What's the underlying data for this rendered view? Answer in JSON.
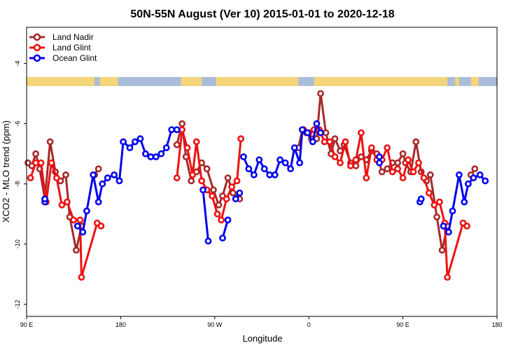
{
  "chart_data": {
    "type": "line",
    "title": "50N-55N August (Ver 10)   2015-01-01 to 2020-12-18",
    "xlabel": "Longitude",
    "ylabel": "XCO2 - MLO trend (ppm)",
    "xlim": [
      0,
      360
    ],
    "ylim": [
      -12.4,
      -2.8
    ],
    "x_ticks": [
      {
        "value": 0,
        "label": "90 E"
      },
      {
        "value": 72,
        "label": "180"
      },
      {
        "value": 144,
        "label": "90 W"
      },
      {
        "value": 216,
        "label": "0"
      },
      {
        "value": 288,
        "label": "90 E"
      },
      {
        "value": 360,
        "label": "180"
      }
    ],
    "y_ticks": [
      {
        "value": -4,
        "label": "-4"
      },
      {
        "value": -6,
        "label": "-6"
      },
      {
        "value": -8,
        "label": "-8"
      },
      {
        "value": -10,
        "label": "-10"
      },
      {
        "value": -12,
        "label": "-12"
      }
    ],
    "legend_position": "top-left",
    "land_strip": {
      "y_range": [
        -4.75,
        -4.45
      ],
      "ocean_color": "#a9bcd9",
      "land_color": "#f5d57a",
      "land_segments": [
        [
          0,
          52
        ],
        [
          56,
          70
        ],
        [
          118,
          134
        ],
        [
          145,
          208
        ],
        [
          220,
          322
        ],
        [
          328,
          331
        ],
        [
          340,
          346
        ]
      ]
    },
    "series": [
      {
        "name": "Land Nadir",
        "color": "#a52a2a",
        "segments": [
          [
            [
              1,
              -7.3
            ],
            [
              4,
              -7.4
            ],
            [
              7,
              -7.0
            ],
            [
              10,
              -7.5
            ],
            [
              14,
              -8.5
            ],
            [
              18,
              -6.6
            ],
            [
              22,
              -7.6
            ],
            [
              26,
              -7.9
            ],
            [
              30,
              -7.7
            ],
            [
              33,
              -9.1
            ],
            [
              38,
              -10.2
            ],
            [
              42,
              -9.4
            ]
          ],
          [
            [
              52,
              -7.7
            ],
            [
              55,
              -7.5
            ]
          ],
          [
            [
              115,
              -6.7
            ],
            [
              119,
              -6.0
            ],
            [
              122,
              -7.1
            ],
            [
              126,
              -7.9
            ],
            [
              130,
              -7.6
            ],
            [
              134,
              -7.3
            ],
            [
              138,
              -7.5
            ],
            [
              143,
              -8.2
            ],
            [
              147,
              -8.7
            ],
            [
              150,
              -8.4
            ],
            [
              154,
              -7.8
            ],
            [
              158,
              -8.3
            ],
            [
              163,
              -8.5
            ]
          ],
          [
            [
              208,
              -6.8
            ],
            [
              211,
              -6.2
            ],
            [
              214,
              -6.3
            ],
            [
              218,
              -6.5
            ],
            [
              222,
              -6.5
            ],
            [
              225,
              -5.0
            ],
            [
              229,
              -6.3
            ],
            [
              233,
              -7.0
            ],
            [
              236,
              -6.5
            ],
            [
              240,
              -6.9
            ],
            [
              243,
              -6.7
            ],
            [
              248,
              -7.3
            ],
            [
              252,
              -7.4
            ],
            [
              256,
              -7.1
            ],
            [
              260,
              -7.2
            ],
            [
              264,
              -6.9
            ],
            [
              268,
              -7.0
            ],
            [
              272,
              -7.6
            ],
            [
              276,
              -7.5
            ],
            [
              280,
              -7.3
            ],
            [
              284,
              -7.3
            ],
            [
              288,
              -7.0
            ],
            [
              290,
              -7.3
            ],
            [
              294,
              -7.6
            ],
            [
              298,
              -6.6
            ],
            [
              302,
              -7.6
            ],
            [
              306,
              -7.9
            ],
            [
              309,
              -7.7
            ],
            [
              314,
              -9.1
            ],
            [
              318,
              -10.2
            ],
            [
              322,
              -9.4
            ]
          ],
          [
            [
              340,
              -7.7
            ],
            [
              343,
              -7.5
            ]
          ]
        ]
      },
      {
        "name": "Land Glint",
        "color": "#ee1111",
        "segments": [
          [
            [
              3,
              -7.8
            ],
            [
              7,
              -7.3
            ],
            [
              11,
              -7.3
            ],
            [
              15,
              -8.6
            ],
            [
              19,
              -7.3
            ],
            [
              23,
              -7.8
            ],
            [
              27,
              -8.7
            ],
            [
              31,
              -8.6
            ],
            [
              36,
              -9.2
            ],
            [
              41,
              -9.2
            ],
            [
              42,
              -11.1
            ],
            [
              54,
              -9.3
            ],
            [
              57,
              -9.4
            ]
          ],
          [
            [
              115,
              -7.8
            ],
            [
              119,
              -6.2
            ],
            [
              123,
              -6.8
            ],
            [
              127,
              -7.7
            ],
            [
              130,
              -6.6
            ],
            [
              134,
              -7.9
            ],
            [
              138,
              -8.2
            ],
            [
              142,
              -8.4
            ],
            [
              146,
              -9.0
            ],
            [
              149,
              -9.2
            ],
            [
              153,
              -8.5
            ],
            [
              157,
              -8.1
            ],
            [
              161,
              -7.9
            ],
            [
              164,
              -6.5
            ]
          ],
          [
            [
              212,
              -6.2
            ],
            [
              216,
              -6.3
            ],
            [
              220,
              -6.2
            ],
            [
              224,
              -6.2
            ],
            [
              228,
              -6.6
            ],
            [
              232,
              -6.6
            ],
            [
              236,
              -7.1
            ],
            [
              240,
              -7.3
            ],
            [
              244,
              -6.6
            ],
            [
              248,
              -7.4
            ],
            [
              252,
              -7.2
            ],
            [
              256,
              -6.3
            ],
            [
              260,
              -7.8
            ],
            [
              264,
              -6.8
            ],
            [
              268,
              -7.2
            ],
            [
              272,
              -7.2
            ],
            [
              276,
              -6.8
            ],
            [
              280,
              -7.6
            ],
            [
              284,
              -7.5
            ],
            [
              288,
              -7.8
            ],
            [
              292,
              -7.2
            ],
            [
              296,
              -7.6
            ],
            [
              300,
              -7.3
            ],
            [
              304,
              -7.8
            ],
            [
              308,
              -8.3
            ],
            [
              312,
              -8.7
            ],
            [
              316,
              -8.6
            ],
            [
              320,
              -9.3
            ],
            [
              322,
              -11.1
            ],
            [
              334,
              -9.3
            ],
            [
              337,
              -9.4
            ]
          ]
        ]
      },
      {
        "name": "Ocean Glint",
        "color": "#0000ee",
        "segments": [
          [
            [
              14,
              -8.6
            ],
            [
              14,
              -8.5
            ]
          ],
          [
            [
              39,
              -9.4
            ],
            [
              43,
              -9.6
            ],
            [
              46,
              -8.9
            ],
            [
              51,
              -7.7
            ],
            [
              55,
              -8.6
            ],
            [
              58,
              -8.0
            ],
            [
              62,
              -7.8
            ],
            [
              67,
              -7.7
            ],
            [
              71,
              -7.9
            ],
            [
              74,
              -6.6
            ],
            [
              79,
              -6.8
            ],
            [
              83,
              -6.6
            ],
            [
              87,
              -6.5
            ],
            [
              91,
              -7.0
            ],
            [
              95,
              -7.1
            ],
            [
              99,
              -7.1
            ],
            [
              103,
              -7.0
            ],
            [
              107,
              -6.8
            ],
            [
              111,
              -6.2
            ],
            [
              115,
              -6.2
            ]
          ],
          [
            [
              135,
              -8.2
            ],
            [
              139,
              -9.9
            ]
          ],
          [
            [
              150,
              -9.8
            ],
            [
              154,
              -9.2
            ]
          ],
          [
            [
              166,
              -7.1
            ],
            [
              170,
              -7.5
            ],
            [
              174,
              -7.7
            ],
            [
              178,
              -7.2
            ],
            [
              182,
              -7.5
            ],
            [
              186,
              -7.7
            ],
            [
              190,
              -7.7
            ],
            [
              194,
              -7.2
            ],
            [
              198,
              -7.3
            ],
            [
              202,
              -7.5
            ],
            [
              205,
              -6.8
            ],
            [
              209,
              -7.3
            ],
            [
              211,
              -6.2
            ],
            [
              215,
              -6.3
            ],
            [
              219,
              -6.6
            ],
            [
              222,
              -6.0
            ],
            [
              225,
              -6.3
            ]
          ],
          [
            [
              160,
              -8.5
            ],
            [
              163,
              -8.3
            ]
          ],
          [
            [
              270,
              -7.3
            ],
            [
              270,
              -7.1
            ]
          ],
          [
            [
              301,
              -8.6
            ],
            [
              302,
              -8.5
            ]
          ],
          [
            [
              319,
              -9.4
            ],
            [
              323,
              -9.6
            ],
            [
              326,
              -8.9
            ],
            [
              331,
              -7.7
            ],
            [
              335,
              -8.6
            ],
            [
              338,
              -8.0
            ],
            [
              342,
              -7.8
            ],
            [
              347,
              -7.7
            ],
            [
              351,
              -7.9
            ]
          ]
        ]
      }
    ]
  }
}
